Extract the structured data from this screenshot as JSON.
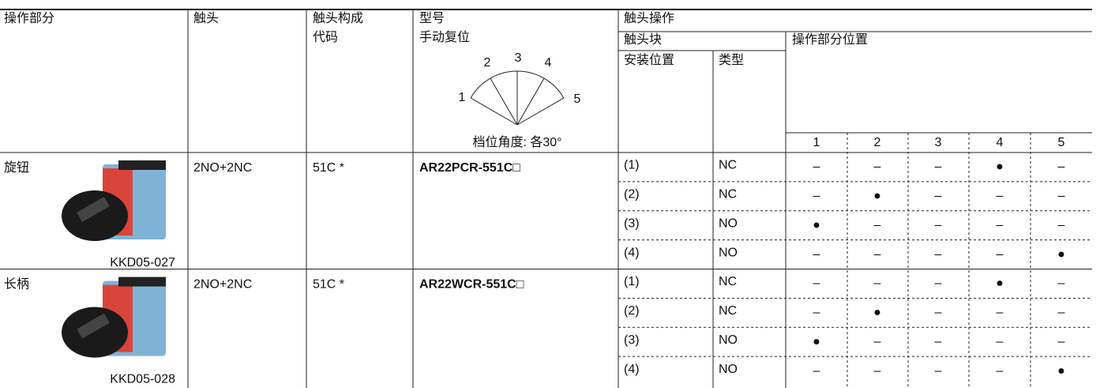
{
  "header": {
    "operation_part": "操作部分",
    "contact": "触头",
    "contact_code": [
      "触头构成",
      "代码"
    ],
    "model": [
      "型号",
      "手动复位"
    ],
    "angle_labels": [
      "1",
      "2",
      "3",
      "4",
      "5"
    ],
    "angle_note": "档位角度: 各30°",
    "contact_operation": "触头操作",
    "contact_block": "触头块",
    "mount_position": "安装位置",
    "type": "类型",
    "operator_position": "操作部分位置",
    "positions": [
      "1",
      "2",
      "3",
      "4",
      "5"
    ]
  },
  "rows": [
    {
      "operator": "旋钮",
      "image_label": "KKD05-027",
      "contact": "2NO+2NC",
      "code": "51C *",
      "model": "AR22PCR-551C□",
      "blocks": [
        {
          "mount": "(1)",
          "type": "NC",
          "states": [
            "–",
            "–",
            "–",
            "●",
            "–"
          ]
        },
        {
          "mount": "(2)",
          "type": "NC",
          "states": [
            "–",
            "●",
            "–",
            "–",
            "–"
          ]
        },
        {
          "mount": "(3)",
          "type": "NO",
          "states": [
            "●",
            "–",
            "–",
            "–",
            "–"
          ]
        },
        {
          "mount": "(4)",
          "type": "NO",
          "states": [
            "–",
            "–",
            "–",
            "–",
            "●"
          ]
        }
      ]
    },
    {
      "operator": "长柄",
      "image_label": "KKD05-028",
      "contact": "2NO+2NC",
      "code": "51C *",
      "model": "AR22WCR-551C□",
      "blocks": [
        {
          "mount": "(1)",
          "type": "NC",
          "states": [
            "–",
            "–",
            "–",
            "●",
            "–"
          ]
        },
        {
          "mount": "(2)",
          "type": "NC",
          "states": [
            "–",
            "●",
            "–",
            "–",
            "–"
          ]
        },
        {
          "mount": "(3)",
          "type": "NO",
          "states": [
            "●",
            "–",
            "–",
            "–",
            "–"
          ]
        },
        {
          "mount": "(4)",
          "type": "NO",
          "states": [
            "–",
            "–",
            "–",
            "–",
            "●"
          ]
        }
      ]
    }
  ]
}
